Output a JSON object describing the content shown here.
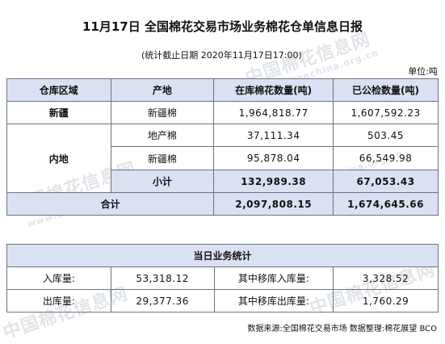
{
  "header": {
    "title": "11月17日 全国棉花交易市场业务棉花仓单信息日报",
    "subtitle": "(统计截止日期 2020年11月17日17:00)",
    "unit": "单位:吨"
  },
  "watermark": {
    "text": "中国棉花信息网",
    "url": "www.cottonchina.org.cn"
  },
  "table1": {
    "headers": [
      "仓库区域",
      "产地",
      "在库棉花数量(吨)",
      "已公检数量(吨)"
    ],
    "xinjiang": {
      "region": "新疆",
      "origin": "新疆棉",
      "stock": "1,964,818.77",
      "inspected": "1,607,592.23"
    },
    "inland": {
      "region": "内地",
      "rows": [
        {
          "origin": "地产棉",
          "stock": "37,111.34",
          "inspected": "503.45"
        },
        {
          "origin": "新疆棉",
          "stock": "95,878.04",
          "inspected": "66,549.98"
        }
      ],
      "subtotal_label": "小计",
      "subtotal_stock": "132,989.38",
      "subtotal_inspected": "67,053.43"
    },
    "total": {
      "label": "合计",
      "stock": "2,097,808.15",
      "inspected": "1,674,645.66"
    }
  },
  "table2": {
    "title": "当日业务统计",
    "rows": [
      {
        "label1": "入库量:",
        "value1": "53,318.12",
        "label2": "其中移库入库量:",
        "value2": "3,328.52"
      },
      {
        "label1": "出库量:",
        "value1": "29,377.36",
        "label2": "其中移库出库量:",
        "value2": "1,760.29"
      }
    ]
  },
  "footer": "数据来源:全国棉花交易市场 数据整理:棉花展望 BCO"
}
